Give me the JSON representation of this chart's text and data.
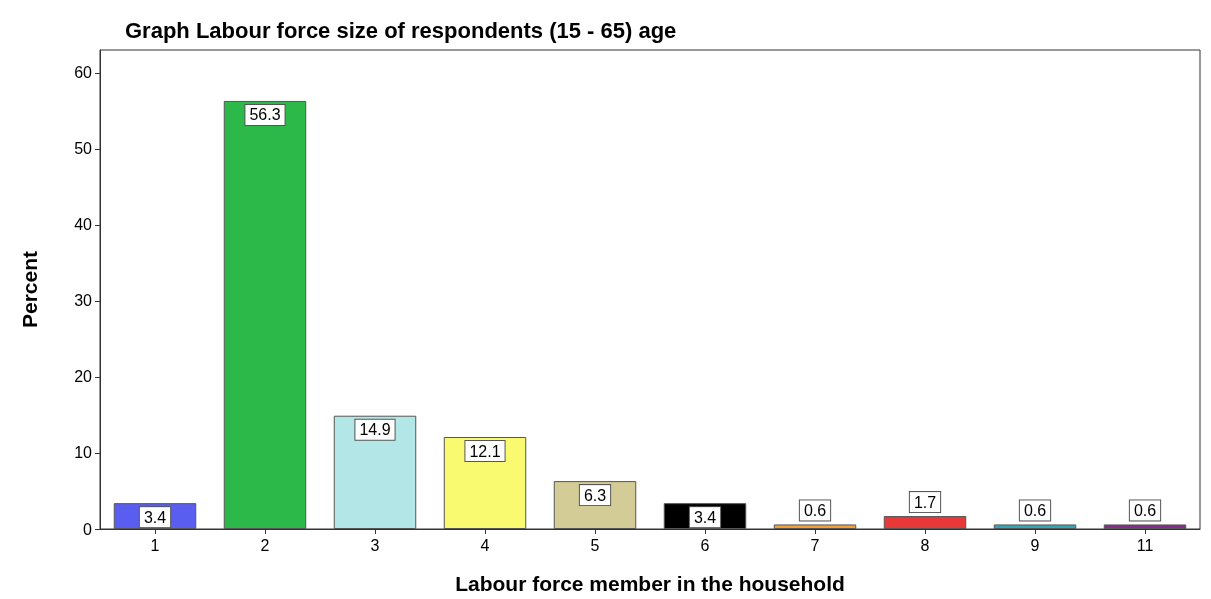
{
  "chart_data": {
    "type": "bar",
    "title": "Graph Labour force size of respondents (15 - 65) age",
    "xlabel": "Labour force member in the household",
    "ylabel": "Percent",
    "categories": [
      "1",
      "2",
      "3",
      "4",
      "5",
      "6",
      "7",
      "8",
      "9",
      "11"
    ],
    "values": [
      3.4,
      56.3,
      14.9,
      12.1,
      6.3,
      3.4,
      0.6,
      1.7,
      0.6,
      0.6
    ],
    "colors": [
      "#5a5ef0",
      "#2db84a",
      "#b3e6e6",
      "#fafa70",
      "#d4cc96",
      "#000000",
      "#f5a030",
      "#e83838",
      "#30a8b8",
      "#8a2a8a"
    ],
    "ylim": [
      0,
      63
    ],
    "yticks": [
      0,
      10,
      20,
      30,
      40,
      50,
      60
    ],
    "grid": false,
    "data_labels": true
  }
}
